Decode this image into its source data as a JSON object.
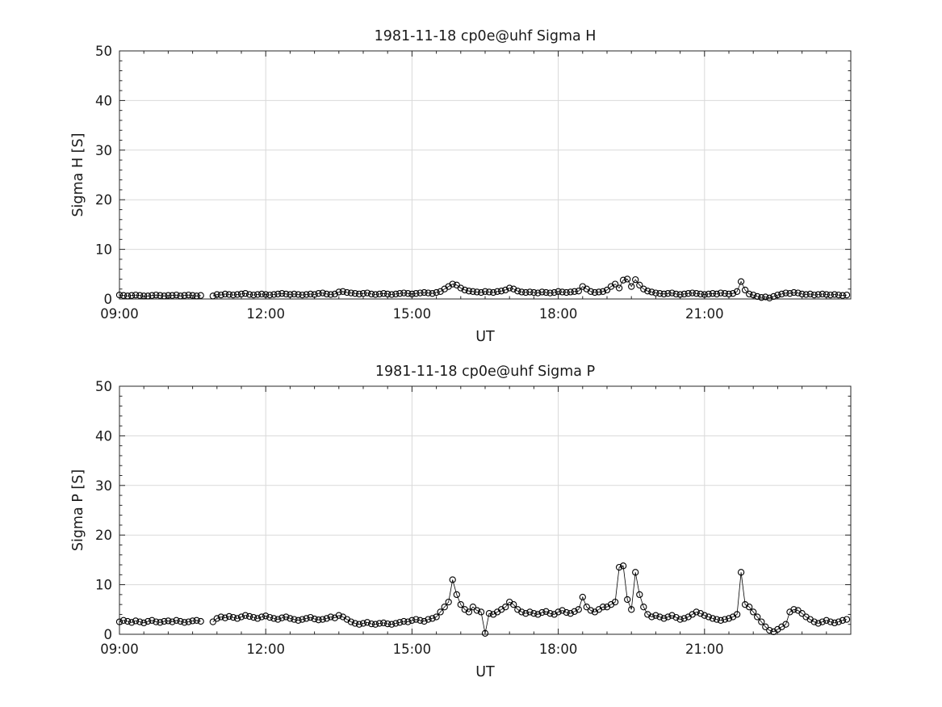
{
  "figure": {
    "background": "#ffffff",
    "axes_color": "#262626",
    "grid_color": "#d9d9d9",
    "data_color": "#000000"
  },
  "chart_data": [
    {
      "id": "sigma-h",
      "type": "scatter",
      "title": "1981-11-18  cp0e@uhf Sigma H",
      "xlabel": "UT",
      "ylabel": "Sigma H [S]",
      "ylim": [
        0,
        50
      ],
      "y_ticks": [
        0,
        10,
        20,
        30,
        40,
        50
      ],
      "y_minor_step": 2,
      "xlim_minutes": [
        540,
        1440
      ],
      "x_ticks": [
        {
          "min": 540,
          "label": "09:00"
        },
        {
          "min": 720,
          "label": "12:00"
        },
        {
          "min": 900,
          "label": "15:00"
        },
        {
          "min": 1080,
          "label": "18:00"
        },
        {
          "min": 1260,
          "label": "21:00"
        }
      ],
      "x_minor_step_min": 30,
      "grid": true,
      "legend": "none",
      "marker": "circle-open",
      "x_start_min": 540,
      "x_step_min": 5,
      "values": [
        0.8,
        0.7,
        0.6,
        0.7,
        0.8,
        0.7,
        0.6,
        0.6,
        0.7,
        0.8,
        0.7,
        0.6,
        0.7,
        0.7,
        0.8,
        0.6,
        0.7,
        0.8,
        0.7,
        0.6,
        0.7,
        null,
        null,
        0.6,
        0.9,
        0.8,
        1.0,
        0.9,
        0.8,
        0.9,
        1.0,
        1.1,
        0.9,
        0.8,
        0.9,
        1.0,
        0.9,
        0.8,
        0.9,
        1.0,
        1.1,
        1.0,
        0.9,
        1.0,
        0.9,
        0.8,
        0.9,
        1.0,
        0.9,
        1.1,
        1.2,
        1.0,
        0.9,
        1.0,
        1.4,
        1.5,
        1.3,
        1.2,
        1.1,
        1.0,
        1.1,
        1.2,
        1.0,
        0.9,
        1.0,
        1.1,
        1.0,
        0.9,
        1.0,
        1.1,
        1.2,
        1.1,
        1.0,
        1.1,
        1.2,
        1.3,
        1.2,
        1.1,
        1.3,
        1.5,
        2.0,
        2.5,
        3.0,
        2.8,
        2.2,
        1.8,
        1.6,
        1.5,
        1.4,
        1.3,
        1.5,
        1.4,
        1.3,
        1.5,
        1.6,
        1.8,
        2.2,
        2.0,
        1.6,
        1.4,
        1.3,
        1.4,
        1.3,
        1.2,
        1.4,
        1.3,
        1.2,
        1.3,
        1.5,
        1.4,
        1.3,
        1.4,
        1.5,
        1.6,
        2.5,
        2.0,
        1.5,
        1.3,
        1.4,
        1.5,
        1.8,
        2.5,
        3.0,
        2.2,
        3.8,
        4.0,
        2.5,
        3.9,
        2.8,
        2.0,
        1.6,
        1.4,
        1.2,
        1.1,
        1.0,
        1.1,
        1.2,
        1.0,
        0.9,
        1.0,
        1.1,
        1.2,
        1.1,
        1.0,
        0.9,
        1.0,
        1.1,
        1.0,
        1.2,
        1.1,
        1.0,
        1.1,
        1.5,
        3.5,
        1.8,
        1.0,
        0.8,
        0.5,
        0.3,
        0.4,
        0.2,
        0.5,
        0.8,
        1.0,
        1.2,
        1.1,
        1.3,
        1.2,
        1.0,
        0.9,
        1.0,
        0.8,
        0.9,
        1.0,
        0.9,
        0.8,
        0.9,
        0.8,
        0.7,
        0.8
      ]
    },
    {
      "id": "sigma-p",
      "type": "scatter",
      "title": "1981-11-18  cp0e@uhf Sigma P",
      "xlabel": "UT",
      "ylabel": "Sigma P [S]",
      "ylim": [
        0,
        50
      ],
      "y_ticks": [
        0,
        10,
        20,
        30,
        40,
        50
      ],
      "y_minor_step": 2,
      "xlim_minutes": [
        540,
        1440
      ],
      "x_ticks": [
        {
          "min": 540,
          "label": "09:00"
        },
        {
          "min": 720,
          "label": "12:00"
        },
        {
          "min": 900,
          "label": "15:00"
        },
        {
          "min": 1080,
          "label": "18:00"
        },
        {
          "min": 1260,
          "label": "21:00"
        }
      ],
      "x_minor_step_min": 30,
      "grid": true,
      "legend": "none",
      "marker": "circle-open",
      "x_start_min": 540,
      "x_step_min": 5,
      "values": [
        2.5,
        2.8,
        2.6,
        2.4,
        2.7,
        2.5,
        2.3,
        2.6,
        2.8,
        2.5,
        2.4,
        2.6,
        2.7,
        2.5,
        2.8,
        2.6,
        2.4,
        2.5,
        2.7,
        2.8,
        2.6,
        null,
        null,
        2.5,
        3.2,
        3.5,
        3.3,
        3.6,
        3.4,
        3.2,
        3.5,
        3.8,
        3.6,
        3.4,
        3.2,
        3.5,
        3.7,
        3.4,
        3.2,
        3.0,
        3.3,
        3.5,
        3.2,
        3.0,
        2.8,
        3.0,
        3.2,
        3.4,
        3.1,
        2.9,
        3.0,
        3.2,
        3.5,
        3.3,
        3.8,
        3.5,
        3.0,
        2.5,
        2.2,
        2.0,
        2.2,
        2.4,
        2.1,
        2.0,
        2.2,
        2.3,
        2.1,
        2.0,
        2.2,
        2.4,
        2.6,
        2.5,
        2.8,
        3.0,
        2.8,
        2.6,
        3.0,
        3.2,
        3.5,
        4.5,
        5.5,
        6.5,
        11.0,
        8.0,
        6.0,
        5.0,
        4.5,
        5.5,
        4.8,
        4.5,
        0.2,
        4.2,
        4.0,
        4.5,
        5.0,
        5.5,
        6.5,
        6.0,
        5.0,
        4.5,
        4.2,
        4.5,
        4.2,
        4.0,
        4.4,
        4.6,
        4.2,
        4.0,
        4.5,
        4.8,
        4.4,
        4.2,
        4.6,
        5.0,
        7.5,
        5.5,
        4.8,
        4.5,
        5.0,
        5.5,
        5.5,
        6.0,
        6.5,
        13.5,
        13.8,
        7.0,
        5.0,
        12.5,
        8.0,
        5.5,
        4.0,
        3.5,
        3.8,
        3.5,
        3.2,
        3.5,
        3.8,
        3.4,
        3.0,
        3.2,
        3.5,
        4.0,
        4.5,
        4.2,
        3.8,
        3.5,
        3.2,
        3.0,
        2.8,
        3.0,
        3.2,
        3.5,
        4.0,
        12.5,
        6.0,
        5.5,
        4.5,
        3.5,
        2.5,
        1.5,
        0.8,
        0.5,
        1.0,
        1.5,
        2.0,
        4.5,
        5.0,
        4.8,
        4.2,
        3.5,
        3.0,
        2.5,
        2.2,
        2.5,
        2.8,
        2.5,
        2.3,
        2.5,
        2.8,
        3.0
      ]
    }
  ]
}
